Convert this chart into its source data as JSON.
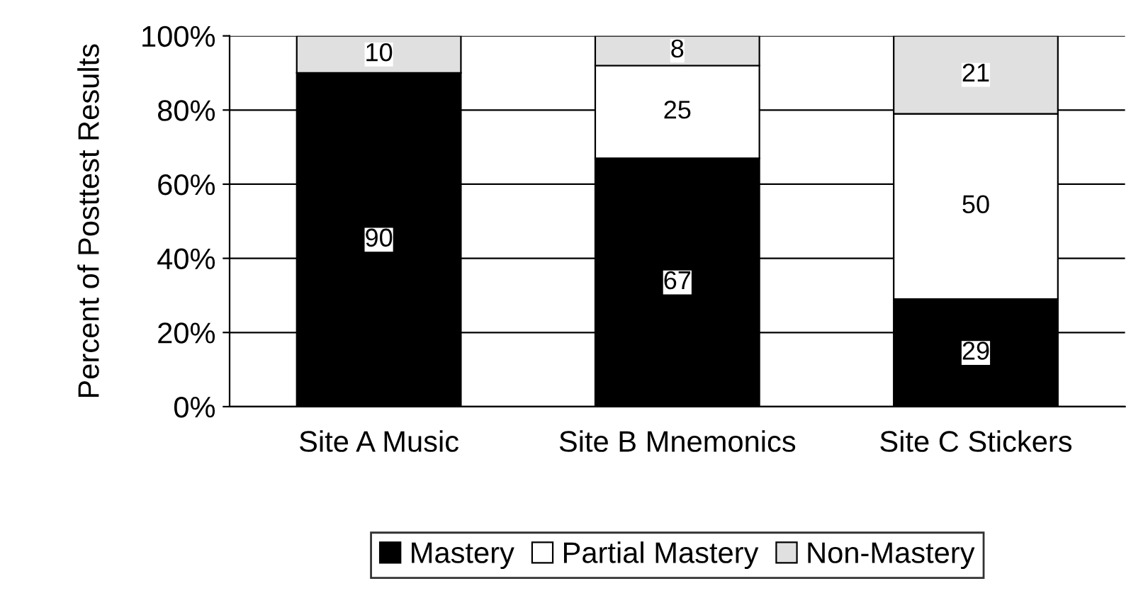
{
  "chart_data": {
    "type": "bar",
    "stacked": true,
    "ylabel": "Percent of Posttest Results",
    "categories": [
      "Site A Music",
      "Site B Mnemonics",
      "Site C Stickers"
    ],
    "series": [
      {
        "name": "Mastery",
        "color": "#000000",
        "values": [
          90,
          67,
          29
        ],
        "value_labels": [
          "90",
          "67",
          "29"
        ]
      },
      {
        "name": "Partial Mastery",
        "color": "#ffffff",
        "values": [
          0,
          25,
          50
        ],
        "value_labels": [
          null,
          "25",
          "50"
        ]
      },
      {
        "name": "Non-Mastery",
        "color": "#e0e0e0",
        "values": [
          10,
          8,
          21
        ],
        "value_labels": [
          "10",
          "8",
          "21"
        ]
      }
    ],
    "ylim": [
      0,
      100
    ],
    "yticks": [
      {
        "value": 0,
        "label": "0%"
      },
      {
        "value": 20,
        "label": "20%"
      },
      {
        "value": 40,
        "label": "40%"
      },
      {
        "value": 60,
        "label": "60%"
      },
      {
        "value": 80,
        "label": "80%"
      },
      {
        "value": 100,
        "label": "100%"
      }
    ],
    "grid": "y",
    "legend": "bottom"
  }
}
